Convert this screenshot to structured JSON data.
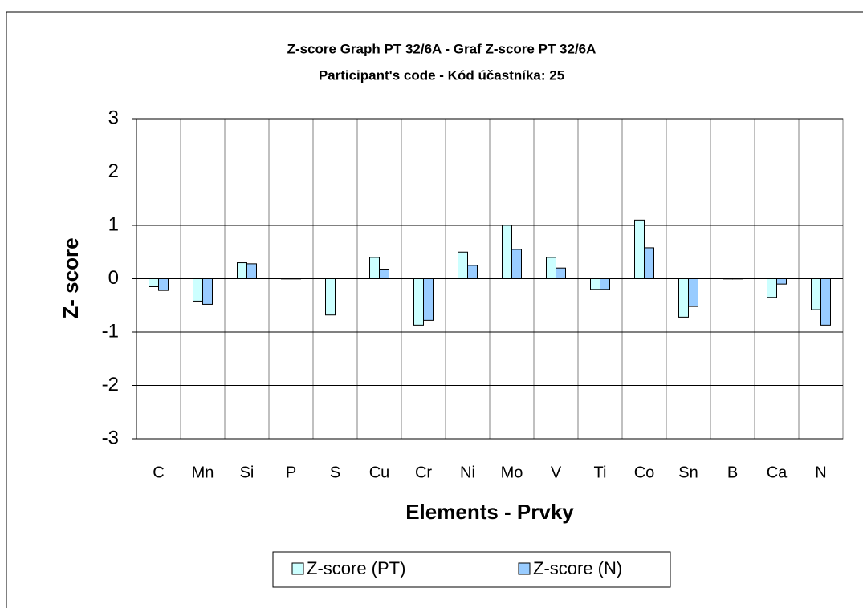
{
  "chart_data": {
    "type": "bar",
    "title": "Z-score Graph PT 32/6A - Graf Z-score PT 32/6A",
    "subtitle": "Participant's code - Kód účastníka:  25",
    "x_label": "Elements - Prvky",
    "y_label": "Z- score",
    "categories": [
      "C",
      "Mn",
      "Si",
      "P",
      "S",
      "Cu",
      "Cr",
      "Ni",
      "Mo",
      "V",
      "Ti",
      "Co",
      "Sn",
      "B",
      "Ca",
      "N"
    ],
    "series": [
      {
        "name": "Z-score (PT)",
        "color": "#ccffff",
        "values": [
          -0.15,
          -0.42,
          0.3,
          0.01,
          -0.68,
          0.4,
          -0.87,
          0.5,
          1.0,
          0.4,
          -0.2,
          1.1,
          -0.72,
          0.01,
          -0.35,
          -0.58
        ]
      },
      {
        "name": "Z-score (N)",
        "color": "#99ccff",
        "values": [
          -0.22,
          -0.48,
          0.28,
          0.01,
          null,
          0.18,
          -0.78,
          0.25,
          0.55,
          0.2,
          -0.2,
          0.58,
          -0.52,
          0.01,
          -0.1,
          -0.87
        ]
      }
    ],
    "ylim": [
      -3,
      3
    ],
    "yticks": [
      -3,
      -2,
      -1,
      0,
      1,
      2,
      3
    ],
    "grid": true,
    "legend": "bottom"
  }
}
